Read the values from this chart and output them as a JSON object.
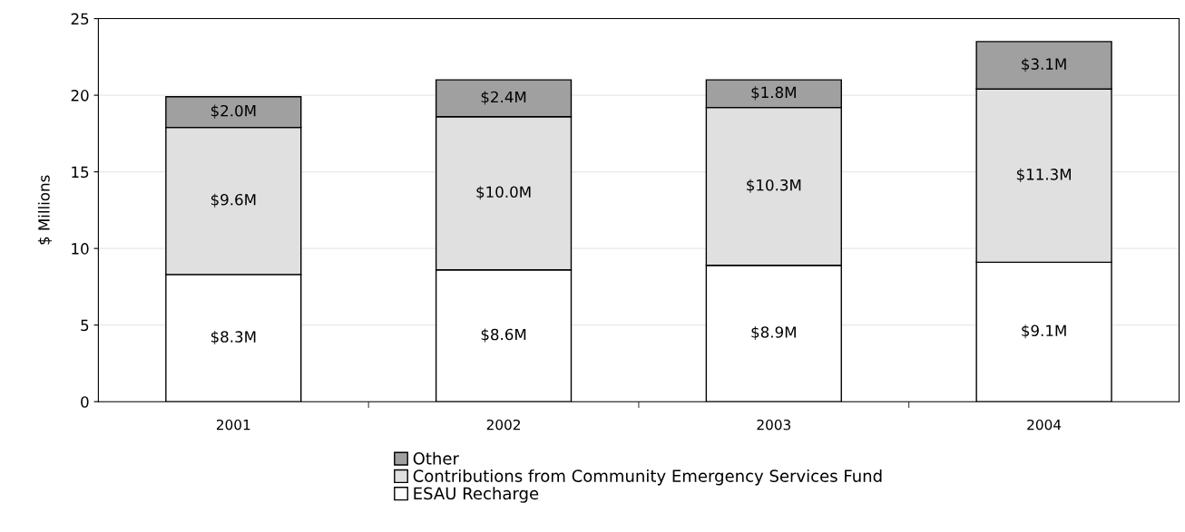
{
  "chart_data": {
    "type": "bar",
    "stacked": true,
    "ylabel": "$ Millions",
    "categories": [
      "2001",
      "2002",
      "2003",
      "2004"
    ],
    "series": [
      {
        "name": "ESAU Recharge",
        "color": "#ffffff",
        "values": [
          8.3,
          8.6,
          8.9,
          9.1
        ],
        "value_labels": [
          "$8.3M",
          "$8.6M",
          "$8.9M",
          "$9.1M"
        ]
      },
      {
        "name": "Contributions from Community Emergency Services Fund",
        "color": "#e0e0e0",
        "values": [
          9.6,
          10.0,
          10.3,
          11.3
        ],
        "value_labels": [
          "$9.6M",
          "$10.0M",
          "$10.3M",
          "$11.3M"
        ]
      },
      {
        "name": "Other",
        "color": "#a0a0a0",
        "values": [
          2.0,
          2.4,
          1.8,
          3.1
        ],
        "value_labels": [
          "$2.0M",
          "$2.4M",
          "$1.8M",
          "$3.1M"
        ]
      }
    ],
    "ylim": [
      0,
      25
    ],
    "yticks": [
      0,
      5,
      10,
      15,
      20,
      25
    ],
    "grid": "y",
    "legend": "bottom"
  }
}
